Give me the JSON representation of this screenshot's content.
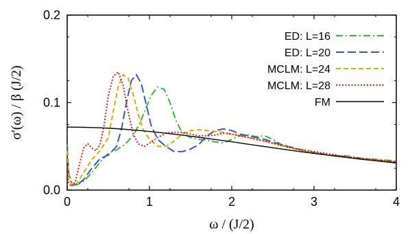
{
  "chart_data": {
    "type": "line",
    "title": "",
    "xlabel": "ω / (J/2)",
    "ylabel": "σ'(ω) / β (J/2)",
    "xlim": [
      0,
      4
    ],
    "ylim": [
      0,
      0.2
    ],
    "x_ticks": [
      "0",
      "1",
      "2",
      "3",
      "4"
    ],
    "y_ticks": [
      "0.0",
      "0.1",
      "0.2"
    ],
    "grid": false,
    "legend_position": "top-right",
    "series": [
      {
        "name": "ED: L=16",
        "color": "#33b833",
        "dash": "dash-dot",
        "points": [
          [
            0,
            0.052
          ],
          [
            0.02,
            0.018
          ],
          [
            0.06,
            0.008
          ],
          [
            0.12,
            0.006
          ],
          [
            0.2,
            0.01
          ],
          [
            0.3,
            0.02
          ],
          [
            0.4,
            0.032
          ],
          [
            0.5,
            0.042
          ],
          [
            0.6,
            0.046
          ],
          [
            0.7,
            0.052
          ],
          [
            0.8,
            0.062
          ],
          [
            0.88,
            0.076
          ],
          [
            0.95,
            0.092
          ],
          [
            1.02,
            0.108
          ],
          [
            1.1,
            0.118
          ],
          [
            1.18,
            0.115
          ],
          [
            1.25,
            0.1
          ],
          [
            1.32,
            0.08
          ],
          [
            1.4,
            0.065
          ],
          [
            1.5,
            0.06
          ],
          [
            1.6,
            0.058
          ],
          [
            1.7,
            0.057
          ],
          [
            1.8,
            0.055
          ],
          [
            1.9,
            0.054
          ],
          [
            2.0,
            0.058
          ],
          [
            2.1,
            0.062
          ],
          [
            2.2,
            0.063
          ],
          [
            2.3,
            0.061
          ],
          [
            2.4,
            0.062
          ],
          [
            2.5,
            0.058
          ],
          [
            2.6,
            0.052
          ],
          [
            2.7,
            0.05
          ],
          [
            2.8,
            0.046
          ],
          [
            3.0,
            0.042
          ],
          [
            3.2,
            0.04
          ],
          [
            3.4,
            0.039
          ],
          [
            3.6,
            0.036
          ],
          [
            3.8,
            0.035
          ],
          [
            4.0,
            0.033
          ]
        ]
      },
      {
        "name": "ED: L=20",
        "color": "#3355cc",
        "dash": "long-dash",
        "points": [
          [
            0,
            0.05
          ],
          [
            0.02,
            0.016
          ],
          [
            0.06,
            0.006
          ],
          [
            0.12,
            0.006
          ],
          [
            0.2,
            0.012
          ],
          [
            0.3,
            0.025
          ],
          [
            0.4,
            0.036
          ],
          [
            0.5,
            0.04
          ],
          [
            0.6,
            0.05
          ],
          [
            0.66,
            0.07
          ],
          [
            0.72,
            0.1
          ],
          [
            0.78,
            0.125
          ],
          [
            0.84,
            0.132
          ],
          [
            0.9,
            0.122
          ],
          [
            0.96,
            0.098
          ],
          [
            1.02,
            0.074
          ],
          [
            1.1,
            0.058
          ],
          [
            1.2,
            0.05
          ],
          [
            1.3,
            0.044
          ],
          [
            1.4,
            0.044
          ],
          [
            1.5,
            0.047
          ],
          [
            1.6,
            0.052
          ],
          [
            1.7,
            0.062
          ],
          [
            1.8,
            0.068
          ],
          [
            1.9,
            0.07
          ],
          [
            2.0,
            0.068
          ],
          [
            2.1,
            0.064
          ],
          [
            2.2,
            0.062
          ],
          [
            2.3,
            0.06
          ],
          [
            2.4,
            0.058
          ],
          [
            2.5,
            0.055
          ],
          [
            2.6,
            0.052
          ],
          [
            2.8,
            0.047
          ],
          [
            3.0,
            0.043
          ],
          [
            3.2,
            0.04
          ],
          [
            3.4,
            0.038
          ],
          [
            3.6,
            0.036
          ],
          [
            3.8,
            0.034
          ],
          [
            4.0,
            0.032
          ]
        ]
      },
      {
        "name": "MCLM: L=24",
        "color": "#e0a800",
        "dash": "dash",
        "points": [
          [
            0,
            0.045
          ],
          [
            0.02,
            0.014
          ],
          [
            0.06,
            0.006
          ],
          [
            0.12,
            0.008
          ],
          [
            0.2,
            0.02
          ],
          [
            0.3,
            0.035
          ],
          [
            0.4,
            0.045
          ],
          [
            0.5,
            0.06
          ],
          [
            0.56,
            0.09
          ],
          [
            0.62,
            0.118
          ],
          [
            0.68,
            0.132
          ],
          [
            0.74,
            0.128
          ],
          [
            0.8,
            0.11
          ],
          [
            0.86,
            0.088
          ],
          [
            0.92,
            0.07
          ],
          [
            1.0,
            0.058
          ],
          [
            1.1,
            0.05
          ],
          [
            1.2,
            0.05
          ],
          [
            1.3,
            0.056
          ],
          [
            1.4,
            0.064
          ],
          [
            1.5,
            0.068
          ],
          [
            1.6,
            0.069
          ],
          [
            1.7,
            0.068
          ],
          [
            1.8,
            0.067
          ],
          [
            1.9,
            0.066
          ],
          [
            2.0,
            0.064
          ],
          [
            2.2,
            0.06
          ],
          [
            2.4,
            0.056
          ],
          [
            2.6,
            0.051
          ],
          [
            2.8,
            0.046
          ],
          [
            3.0,
            0.043
          ],
          [
            3.2,
            0.04
          ],
          [
            3.4,
            0.038
          ],
          [
            3.6,
            0.036
          ],
          [
            3.8,
            0.034
          ],
          [
            4.0,
            0.032
          ]
        ]
      },
      {
        "name": "MCLM: L=28",
        "color": "#dd1111",
        "dash": "dot",
        "points": [
          [
            0,
            0.02
          ],
          [
            0.02,
            0.008
          ],
          [
            0.05,
            0.004
          ],
          [
            0.1,
            0.01
          ],
          [
            0.15,
            0.03
          ],
          [
            0.2,
            0.048
          ],
          [
            0.25,
            0.053
          ],
          [
            0.3,
            0.048
          ],
          [
            0.35,
            0.045
          ],
          [
            0.4,
            0.052
          ],
          [
            0.45,
            0.075
          ],
          [
            0.5,
            0.108
          ],
          [
            0.56,
            0.13
          ],
          [
            0.62,
            0.135
          ],
          [
            0.68,
            0.12
          ],
          [
            0.74,
            0.09
          ],
          [
            0.8,
            0.065
          ],
          [
            0.86,
            0.053
          ],
          [
            0.94,
            0.05
          ],
          [
            1.02,
            0.055
          ],
          [
            1.1,
            0.06
          ],
          [
            1.2,
            0.065
          ],
          [
            1.3,
            0.066
          ],
          [
            1.4,
            0.066
          ],
          [
            1.5,
            0.064
          ],
          [
            1.6,
            0.062
          ],
          [
            1.7,
            0.062
          ],
          [
            1.8,
            0.063
          ],
          [
            1.9,
            0.065
          ],
          [
            2.0,
            0.064
          ],
          [
            2.2,
            0.06
          ],
          [
            2.4,
            0.056
          ],
          [
            2.6,
            0.051
          ],
          [
            2.8,
            0.047
          ],
          [
            3.0,
            0.044
          ],
          [
            3.2,
            0.041
          ],
          [
            3.4,
            0.038
          ],
          [
            3.6,
            0.036
          ],
          [
            3.8,
            0.034
          ],
          [
            4.0,
            0.032
          ]
        ]
      },
      {
        "name": "FM",
        "color": "#000000",
        "dash": "solid",
        "points": [
          [
            0,
            0.072
          ],
          [
            0.2,
            0.0718
          ],
          [
            0.4,
            0.0712
          ],
          [
            0.6,
            0.0702
          ],
          [
            0.8,
            0.0688
          ],
          [
            1.0,
            0.067
          ],
          [
            1.2,
            0.065
          ],
          [
            1.4,
            0.0628
          ],
          [
            1.6,
            0.0604
          ],
          [
            1.8,
            0.0578
          ],
          [
            2.0,
            0.0552
          ],
          [
            2.2,
            0.0524
          ],
          [
            2.4,
            0.0497
          ],
          [
            2.6,
            0.047
          ],
          [
            2.8,
            0.0444
          ],
          [
            3.0,
            0.0419
          ],
          [
            3.2,
            0.0395
          ],
          [
            3.4,
            0.0372
          ],
          [
            3.6,
            0.035
          ],
          [
            3.8,
            0.033
          ],
          [
            4.0,
            0.031
          ]
        ]
      }
    ]
  }
}
